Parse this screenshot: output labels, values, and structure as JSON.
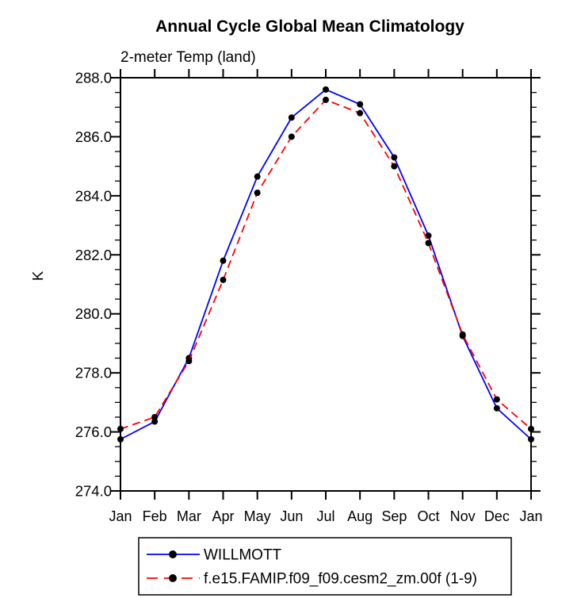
{
  "chart_data": {
    "type": "line",
    "title": "Annual Cycle Global Mean Climatology",
    "subtitle": "2-meter Temp (land)",
    "ylabel": "K",
    "categories": [
      "Jan",
      "Feb",
      "Mar",
      "Apr",
      "May",
      "Jun",
      "Jul",
      "Aug",
      "Sep",
      "Oct",
      "Nov",
      "Dec",
      "Jan"
    ],
    "ylim": [
      274.0,
      288.0
    ],
    "y_major_step": 2.0,
    "y_minor_step": 0.5,
    "y_tick_labels": [
      "274.0",
      "276.0",
      "278.0",
      "280.0",
      "282.0",
      "284.0",
      "286.0",
      "288.0"
    ],
    "grid": false,
    "legend_position": "bottom-center",
    "axis_color": "#000000",
    "background_color": "#ffffff",
    "marker_color": "#000000",
    "series": [
      {
        "name": "WILLMOTT",
        "color": "#0000ff",
        "line_style": "solid",
        "marker": "filled-circle",
        "values": [
          275.75,
          276.35,
          278.5,
          281.8,
          284.65,
          286.65,
          287.6,
          287.1,
          285.3,
          282.65,
          279.25,
          276.8,
          275.75
        ]
      },
      {
        "name": "f.e15.FAMIP.f09_f09.cesm2_zm.00f (1-9)",
        "color": "#ff0000",
        "line_style": "dashed",
        "marker": "filled-circle",
        "values": [
          276.1,
          276.5,
          278.4,
          281.15,
          284.1,
          286.0,
          287.25,
          286.8,
          285.0,
          282.4,
          279.3,
          277.1,
          276.1
        ]
      }
    ]
  }
}
